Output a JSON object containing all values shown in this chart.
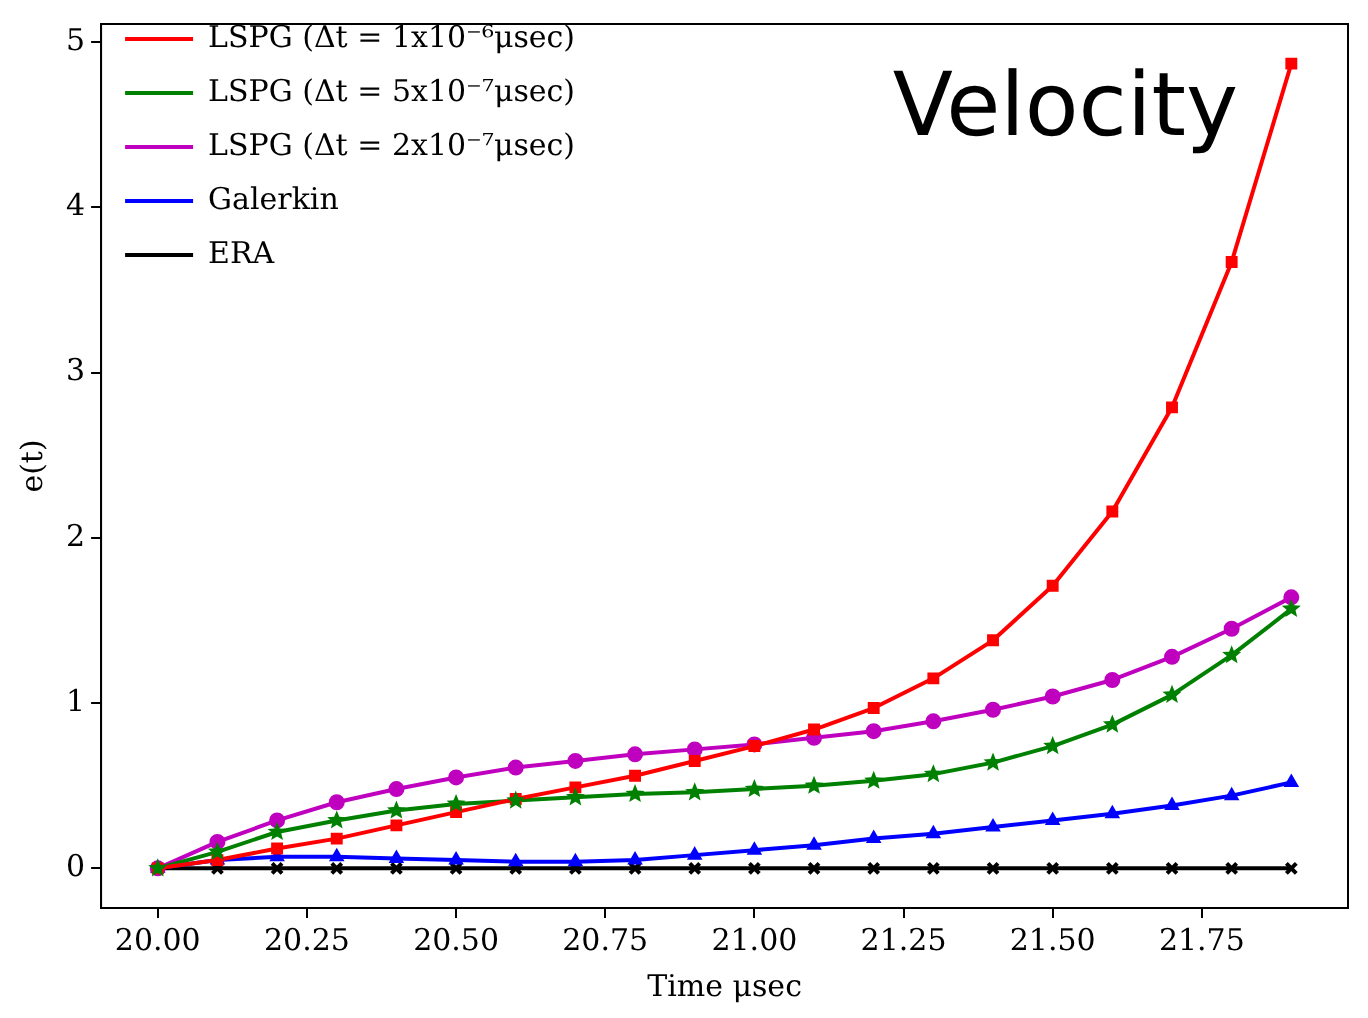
{
  "chart_data": {
    "type": "line",
    "xlabel": "Time μsec",
    "ylabel": "e(t)",
    "annotations": [
      "Velocity"
    ],
    "x": [
      20.0,
      20.1,
      20.2,
      20.3,
      20.4,
      20.5,
      20.6,
      20.7,
      20.8,
      20.9,
      21.0,
      21.1,
      21.2,
      21.3,
      21.4,
      21.5,
      21.6,
      21.7,
      21.8,
      21.9
    ],
    "xlim": [
      19.905,
      21.995
    ],
    "xticks": [
      {
        "value": 20,
        "label": "20.00"
      },
      {
        "value": 20.25,
        "label": "20.25"
      },
      {
        "value": 20.5,
        "label": "20.50"
      },
      {
        "value": 20.75,
        "label": "20.75"
      },
      {
        "value": 21,
        "label": "21.00"
      },
      {
        "value": 21.25,
        "label": "21.25"
      },
      {
        "value": 21.5,
        "label": "21.50"
      },
      {
        "value": 21.75,
        "label": "21.75"
      }
    ],
    "ylim": [
      -0.24,
      5.11
    ],
    "yticks": [
      0,
      1,
      2,
      3,
      4,
      5
    ],
    "grid": false,
    "legend": "top left",
    "line_style": "solid",
    "series": [
      {
        "name": "LSPG (Δt = 1x10⁻⁶μsec)",
        "color": "#ff0000",
        "marker": "square",
        "values": [
          0,
          0.05,
          0.12,
          0.18,
          0.26,
          0.34,
          0.42,
          0.49,
          0.56,
          0.65,
          0.74,
          0.84,
          0.97,
          1.15,
          1.38,
          1.71,
          2.16,
          2.79,
          3.67,
          4.87
        ]
      },
      {
        "name": "LSPG (Δt = 5x10⁻⁷μsec)",
        "color": "#008000",
        "marker": "star",
        "values": [
          0,
          0.1,
          0.22,
          0.29,
          0.35,
          0.39,
          0.41,
          0.43,
          0.45,
          0.46,
          0.48,
          0.5,
          0.53,
          0.57,
          0.64,
          0.74,
          0.87,
          1.05,
          1.29,
          1.57
        ]
      },
      {
        "name": "LSPG (Δt = 2x10⁻⁷μsec)",
        "color": "#bf00bf",
        "marker": "circle",
        "values": [
          0,
          0.16,
          0.29,
          0.4,
          0.48,
          0.55,
          0.61,
          0.65,
          0.69,
          0.72,
          0.75,
          0.79,
          0.83,
          0.89,
          0.96,
          1.04,
          1.14,
          1.28,
          1.45,
          1.64
        ]
      },
      {
        "name": "Galerkin",
        "color": "#0000ff",
        "marker": "triangle",
        "values": [
          0,
          0.05,
          0.07,
          0.07,
          0.06,
          0.05,
          0.04,
          0.04,
          0.05,
          0.08,
          0.11,
          0.14,
          0.18,
          0.21,
          0.25,
          0.29,
          0.33,
          0.38,
          0.44,
          0.52
        ]
      },
      {
        "name": "ERA",
        "color": "#000000",
        "marker": "cross",
        "values": [
          0,
          0,
          0,
          0,
          0,
          0,
          0,
          0,
          0,
          0,
          0,
          0,
          0,
          0,
          0,
          0,
          0,
          0,
          0,
          0
        ]
      }
    ]
  }
}
